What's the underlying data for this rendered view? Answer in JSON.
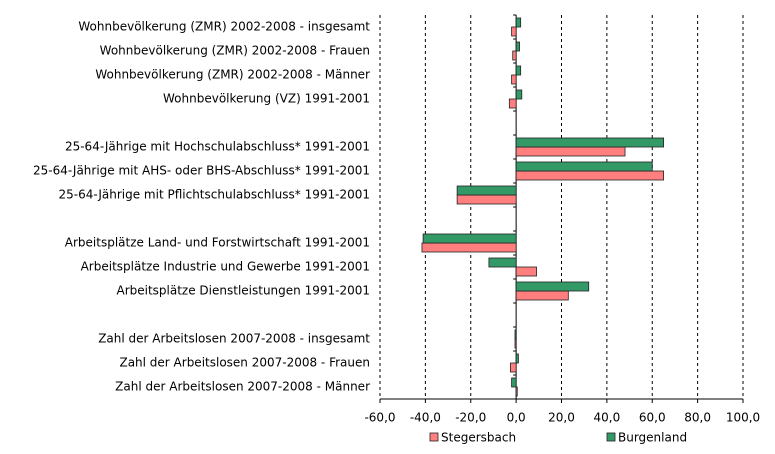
{
  "chart_data": {
    "type": "hbar",
    "categories": [
      "Wohnbevölkerung (ZMR) 2002-2008 - insgesamt",
      "Wohnbevölkerung (ZMR) 2002-2008 - Frauen",
      "Wohnbevölkerung (ZMR) 2002-2008 - Männer",
      "Wohnbevölkerung (VZ) 1991-2001",
      null,
      "25-64-Jährige mit Hochschulabschluss* 1991-2001",
      "25-64-Jährige mit AHS- oder BHS-Abschluss* 1991-2001",
      "25-64-Jährige mit Pflichtschulabschluss* 1991-2001",
      null,
      "Arbeitsplätze Land- und Forstwirtschaft 1991-2001",
      "Arbeitsplätze Industrie und Gewerbe 1991-2001",
      "Arbeitsplätze Dienstleistungen 1991-2001",
      null,
      "Zahl der Arbeitslosen 2007-2008 - insgesamt",
      "Zahl der Arbeitslosen 2007-2008 - Frauen",
      "Zahl der Arbeitslosen 2007-2008 - Männer"
    ],
    "series": [
      {
        "name": "Stegersbach",
        "color": "#ff7f7f",
        "values": [
          -2,
          -1.5,
          -2,
          -3,
          null,
          48,
          65,
          -26,
          null,
          -41.5,
          9,
          23,
          null,
          -0.5,
          -2.5,
          0.5
        ]
      },
      {
        "name": "Burgenland",
        "color": "#339966",
        "values": [
          2,
          1.5,
          2,
          2.5,
          null,
          65,
          60,
          -26,
          null,
          -41,
          -12,
          32,
          null,
          -0.5,
          1,
          -2
        ]
      }
    ],
    "xlim": [
      -60,
      100
    ],
    "xticks": [
      {
        "value": -60,
        "label": "-60,0"
      },
      {
        "value": -40,
        "label": "-40,0"
      },
      {
        "value": -20,
        "label": "-20,0"
      },
      {
        "value": 0,
        "label": "0,0"
      },
      {
        "value": 20,
        "label": "20,0"
      },
      {
        "value": 40,
        "label": "40,0"
      },
      {
        "value": 60,
        "label": "60,0"
      },
      {
        "value": 80,
        "label": "80,0"
      },
      {
        "value": 100,
        "label": "100,0"
      }
    ],
    "grid": true
  }
}
